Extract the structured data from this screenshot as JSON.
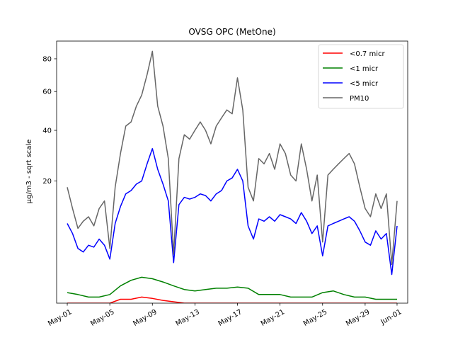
{
  "chart_data": {
    "type": "line",
    "title": "OVSG OPC (MetOne)",
    "xlabel": "",
    "ylabel": "µg/m3 - sqrt scale",
    "y_scale": "sqrt",
    "ylim": [
      0,
      92
    ],
    "xlim": [
      "2022-04-30",
      "2022-06-02"
    ],
    "x_ticks": [
      {
        "date": "2022-05-01",
        "label": "May-01"
      },
      {
        "date": "2022-05-05",
        "label": "May-05"
      },
      {
        "date": "2022-05-09",
        "label": "May-09"
      },
      {
        "date": "2022-05-13",
        "label": "May-13"
      },
      {
        "date": "2022-05-17",
        "label": "May-17"
      },
      {
        "date": "2022-05-21",
        "label": "May-21"
      },
      {
        "date": "2022-05-25",
        "label": "May-25"
      },
      {
        "date": "2022-05-29",
        "label": "May-29"
      },
      {
        "date": "2022-06-01",
        "label": "Jun-01"
      }
    ],
    "y_ticks": [
      20,
      40,
      60,
      80
    ],
    "legend_position": "top-right",
    "grid": false,
    "series": [
      {
        "name": "<0.7 micr",
        "color": "#ff0000",
        "x": [
          "2022-05-01",
          "2022-05-04",
          "2022-05-05",
          "2022-05-06",
          "2022-05-07",
          "2022-05-08",
          "2022-05-09",
          "2022-05-10",
          "2022-05-12",
          "2022-05-16",
          "2022-05-20",
          "2022-05-24",
          "2022-05-28",
          "2022-06-01"
        ],
        "y": [
          0.0,
          0.0,
          0.0,
          0.02,
          0.02,
          0.05,
          0.03,
          0.01,
          0.0,
          0.0,
          0.0,
          0.0,
          0.0,
          0.0
        ]
      },
      {
        "name": "<1 micr",
        "color": "#008000",
        "x": [
          "2022-05-01",
          "2022-05-02",
          "2022-05-03",
          "2022-05-04",
          "2022-05-05",
          "2022-05-06",
          "2022-05-07",
          "2022-05-08",
          "2022-05-09",
          "2022-05-10",
          "2022-05-11",
          "2022-05-12",
          "2022-05-13",
          "2022-05-14",
          "2022-05-15",
          "2022-05-16",
          "2022-05-17",
          "2022-05-18",
          "2022-05-19",
          "2022-05-20",
          "2022-05-21",
          "2022-05-22",
          "2022-05-23",
          "2022-05-24",
          "2022-05-25",
          "2022-05-26",
          "2022-05-27",
          "2022-05-28",
          "2022-05-29",
          "2022-05-30",
          "2022-05-31",
          "2022-06-01"
        ],
        "y": [
          0.15,
          0.1,
          0.05,
          0.05,
          0.1,
          0.4,
          0.7,
          0.9,
          0.8,
          0.6,
          0.4,
          0.25,
          0.2,
          0.25,
          0.3,
          0.3,
          0.35,
          0.3,
          0.1,
          0.1,
          0.1,
          0.05,
          0.05,
          0.05,
          0.15,
          0.2,
          0.1,
          0.05,
          0.05,
          0.02,
          0.02,
          0.02
        ]
      },
      {
        "name": "<5 micr",
        "color": "#0000ff",
        "x": [
          "2022-05-01",
          "2022-05-01T12",
          "2022-05-02",
          "2022-05-02T12",
          "2022-05-03",
          "2022-05-03T12",
          "2022-05-04",
          "2022-05-04T12",
          "2022-05-05",
          "2022-05-05T12",
          "2022-05-06",
          "2022-05-06T12",
          "2022-05-07",
          "2022-05-07T12",
          "2022-05-08",
          "2022-05-08T12",
          "2022-05-09",
          "2022-05-09T12",
          "2022-05-10",
          "2022-05-10T12",
          "2022-05-11",
          "2022-05-11T12",
          "2022-05-12",
          "2022-05-12T12",
          "2022-05-13",
          "2022-05-13T12",
          "2022-05-14",
          "2022-05-14T12",
          "2022-05-15",
          "2022-05-15T12",
          "2022-05-16",
          "2022-05-16T12",
          "2022-05-17",
          "2022-05-17T12",
          "2022-05-18",
          "2022-05-18T12",
          "2022-05-19",
          "2022-05-19T12",
          "2022-05-20",
          "2022-05-20T12",
          "2022-05-21",
          "2022-05-21T12",
          "2022-05-22",
          "2022-05-22T12",
          "2022-05-23",
          "2022-05-23T12",
          "2022-05-24",
          "2022-05-24T12",
          "2022-05-25",
          "2022-05-25T12",
          "2022-05-26",
          "2022-05-26T12",
          "2022-05-27",
          "2022-05-27T12",
          "2022-05-28",
          "2022-05-28T12",
          "2022-05-29",
          "2022-05-29T12",
          "2022-05-30",
          "2022-05-30T12",
          "2022-05-31",
          "2022-05-31T12",
          "2022-06-01"
        ],
        "y": [
          8.5,
          6.5,
          4.0,
          3.5,
          4.5,
          4.2,
          5.5,
          4.5,
          2.6,
          8.5,
          12.5,
          16.0,
          17.0,
          19.0,
          20.0,
          26.0,
          32.0,
          24.0,
          19.0,
          14.0,
          2.2,
          13.0,
          15.0,
          14.5,
          15.0,
          16.0,
          15.5,
          14.0,
          16.0,
          17.0,
          20.0,
          21.0,
          24.0,
          20.0,
          8.0,
          5.5,
          9.5,
          9.0,
          10.0,
          9.0,
          10.5,
          10.0,
          9.5,
          8.5,
          11.0,
          9.0,
          6.5,
          8.0,
          3.0,
          8.0,
          8.5,
          9.0,
          9.5,
          10.0,
          9.0,
          7.0,
          5.0,
          4.5,
          7.0,
          5.5,
          6.5,
          1.1,
          8.0
        ]
      },
      {
        "name": "PM10",
        "color": "#666666",
        "x": [
          "2022-05-01",
          "2022-05-01T12",
          "2022-05-02",
          "2022-05-02T12",
          "2022-05-03",
          "2022-05-03T12",
          "2022-05-04",
          "2022-05-04T12",
          "2022-05-05",
          "2022-05-05T12",
          "2022-05-06",
          "2022-05-06T12",
          "2022-05-07",
          "2022-05-07T12",
          "2022-05-08",
          "2022-05-08T12",
          "2022-05-09",
          "2022-05-09T12",
          "2022-05-10",
          "2022-05-10T12",
          "2022-05-11",
          "2022-05-11T12",
          "2022-05-12",
          "2022-05-12T12",
          "2022-05-13",
          "2022-05-13T12",
          "2022-05-14",
          "2022-05-14T12",
          "2022-05-15",
          "2022-05-15T12",
          "2022-05-16",
          "2022-05-16T12",
          "2022-05-17",
          "2022-05-17T12",
          "2022-05-18",
          "2022-05-18T12",
          "2022-05-19",
          "2022-05-19T12",
          "2022-05-20",
          "2022-05-20T12",
          "2022-05-21",
          "2022-05-21T12",
          "2022-05-22",
          "2022-05-22T12",
          "2022-05-23",
          "2022-05-23T12",
          "2022-05-24",
          "2022-05-24T12",
          "2022-05-25",
          "2022-05-25T12",
          "2022-05-26",
          "2022-05-26T12",
          "2022-05-27",
          "2022-05-27T12",
          "2022-05-28",
          "2022-05-28T12",
          "2022-05-29",
          "2022-05-29T12",
          "2022-05-30",
          "2022-05-30T12",
          "2022-05-31",
          "2022-05-31T12",
          "2022-06-01"
        ],
        "y": [
          18.0,
          12.0,
          7.5,
          9.0,
          10.0,
          8.0,
          12.0,
          14.0,
          4.0,
          18.0,
          30.0,
          42.0,
          44.0,
          52.0,
          58.0,
          70.0,
          85.0,
          52.0,
          42.0,
          28.0,
          3.2,
          28.0,
          38.0,
          36.0,
          40.0,
          44.0,
          40.0,
          34.0,
          42.0,
          46.0,
          50.0,
          48.0,
          68.0,
          50.0,
          18.0,
          14.0,
          28.0,
          26.0,
          30.0,
          24.0,
          34.0,
          30.0,
          22.0,
          20.0,
          34.0,
          24.0,
          14.0,
          22.0,
          5.0,
          22.0,
          24.0,
          26.0,
          28.0,
          30.0,
          26.0,
          18.0,
          12.0,
          10.0,
          16.0,
          12.0,
          16.0,
          2.0,
          14.0
        ]
      }
    ]
  }
}
